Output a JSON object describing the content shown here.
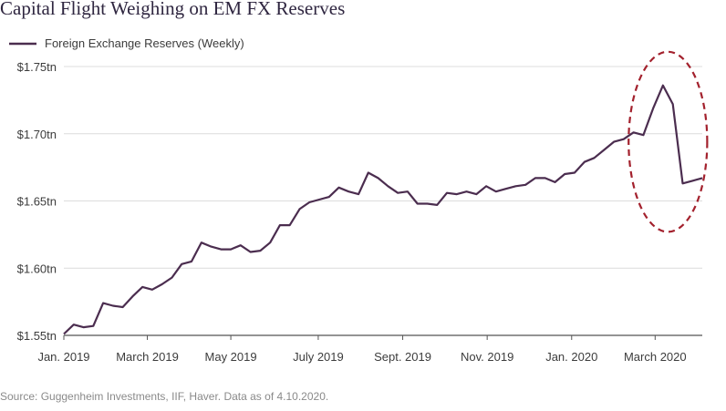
{
  "chart_data": {
    "type": "line",
    "title": "Capital Flight Weighing on EM FX Reserves",
    "xlabel": "",
    "ylabel": "",
    "x": [
      0,
      1,
      2,
      3,
      4,
      5,
      6,
      7,
      8,
      9,
      10,
      11,
      12,
      13,
      14,
      15,
      16,
      17,
      18,
      19,
      20,
      21,
      22,
      23,
      24,
      25,
      26,
      27,
      28,
      29,
      30,
      31,
      32,
      33,
      34,
      35,
      36,
      37,
      38,
      39,
      40,
      41,
      42,
      43,
      44,
      45,
      46,
      47,
      48,
      49,
      50,
      51,
      52,
      53,
      54,
      55,
      56,
      57,
      58,
      59,
      60,
      61,
      62,
      63,
      64,
      65
    ],
    "x_tick_labels": [
      {
        "label": "Jan. 2019",
        "at": 0
      },
      {
        "label": "March 2019",
        "at": 8.5
      },
      {
        "label": "May 2019",
        "at": 17
      },
      {
        "label": "July 2019",
        "at": 25.9
      },
      {
        "label": "Sept. 2019",
        "at": 34.5
      },
      {
        "label": "Nov. 2019",
        "at": 43.1
      },
      {
        "label": "Jan. 2020",
        "at": 51.7
      },
      {
        "label": "March 2020",
        "at": 60.2
      }
    ],
    "ylim": [
      1.55,
      1.75
    ],
    "y_ticks": [
      {
        "value": 1.55,
        "label": "$1.55tn"
      },
      {
        "value": 1.6,
        "label": "$1.60tn"
      },
      {
        "value": 1.65,
        "label": "$1.65tn"
      },
      {
        "value": 1.7,
        "label": "$1.70tn"
      },
      {
        "value": 1.75,
        "label": "$1.75tn"
      }
    ],
    "grid": "horizontal",
    "legend_position": "top-left",
    "series": [
      {
        "name": "Foreign Exchange Reserves (Weekly)",
        "color": "#4b2d4f",
        "values": [
          1.551,
          1.558,
          1.556,
          1.557,
          1.574,
          1.572,
          1.571,
          1.579,
          1.586,
          1.584,
          1.588,
          1.593,
          1.603,
          1.605,
          1.619,
          1.616,
          1.614,
          1.614,
          1.617,
          1.612,
          1.613,
          1.619,
          1.632,
          1.632,
          1.644,
          1.649,
          1.651,
          1.653,
          1.66,
          1.657,
          1.655,
          1.671,
          1.667,
          1.661,
          1.656,
          1.657,
          1.648,
          1.648,
          1.647,
          1.656,
          1.655,
          1.657,
          1.655,
          1.661,
          1.657,
          1.659,
          1.661,
          1.662,
          1.667,
          1.667,
          1.664,
          1.67,
          1.671,
          1.679,
          1.682,
          1.688,
          1.694,
          1.696,
          1.701,
          1.699,
          1.719,
          1.736,
          1.722,
          1.663,
          1.665,
          1.667
        ]
      }
    ],
    "highlight": {
      "shape": "dashed-ellipse",
      "color": "#a3212d",
      "x_range": [
        57.5,
        65.5
      ],
      "y_range": [
        1.627,
        1.761
      ]
    },
    "source": "Source: Guggenheim Investments, IIF, Haver. Data as of 4.10.2020."
  }
}
